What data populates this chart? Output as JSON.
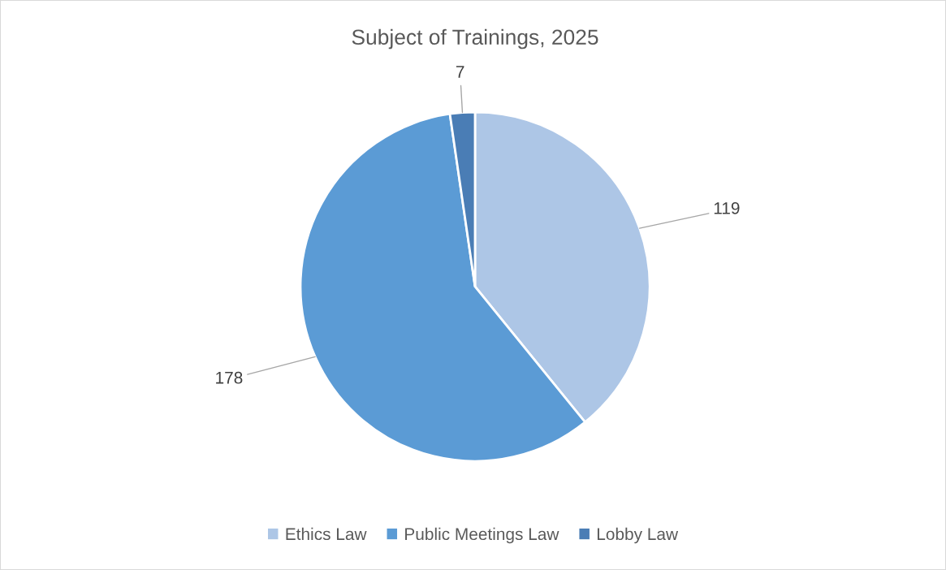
{
  "chart_data": {
    "type": "pie",
    "title": "Subject of Trainings, 2025",
    "categories": [
      "Ethics Law",
      "Public Meetings Law",
      "Lobby Law"
    ],
    "values": [
      119,
      178,
      7
    ],
    "colors": [
      "#adc6e6",
      "#5b9bd5",
      "#4a7db5"
    ],
    "data_labels": true,
    "legend": "bottom"
  }
}
